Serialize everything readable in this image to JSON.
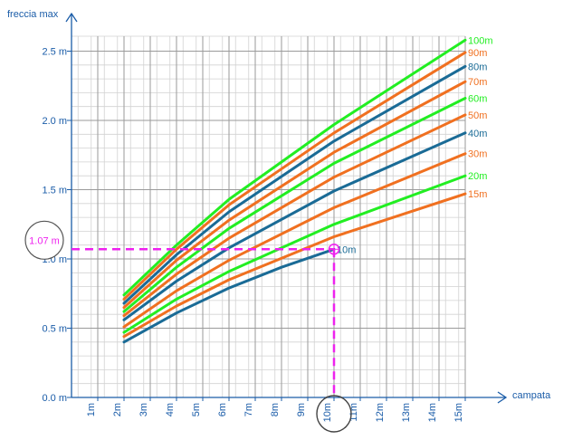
{
  "chart_data": {
    "type": "line",
    "ylabel": "freccia max",
    "xlabel": "campata",
    "xlim": [
      0,
      15
    ],
    "ylim": [
      0,
      2.5
    ],
    "x_ticks": [
      "1m",
      "2m",
      "3m",
      "4m",
      "5m",
      "6m",
      "7m",
      "8m",
      "9m",
      "10m",
      "11m",
      "12m",
      "13m",
      "14m",
      "15m"
    ],
    "y_ticks": [
      "0.0 m",
      "0.5 m",
      "1.0 m",
      "1.5 m",
      "2.0 m",
      "2.5 m"
    ],
    "grid": true,
    "colors": {
      "green": "#22ee22",
      "orange": "#f07020",
      "blue": "#1a6b96",
      "magenta": "#ee22ee",
      "grid": "#9a9a9a"
    },
    "series": [
      {
        "name": "100m",
        "color": "#22ee22",
        "x": [
          2,
          4,
          6,
          10,
          15
        ],
        "y": [
          0.74,
          1.1,
          1.43,
          1.97,
          2.58
        ]
      },
      {
        "name": "90m",
        "color": "#f07020",
        "x": [
          2,
          4,
          6,
          10,
          15
        ],
        "y": [
          0.71,
          1.07,
          1.39,
          1.91,
          2.49
        ]
      },
      {
        "name": "80m",
        "color": "#1a6b96",
        "x": [
          2,
          4,
          6,
          10,
          15
        ],
        "y": [
          0.68,
          1.03,
          1.34,
          1.85,
          2.39
        ]
      },
      {
        "name": "70m",
        "color": "#f07020",
        "x": [
          2,
          4,
          6,
          10,
          15
        ],
        "y": [
          0.65,
          0.99,
          1.28,
          1.77,
          2.28
        ]
      },
      {
        "name": "60m",
        "color": "#22ee22",
        "x": [
          2,
          4,
          6,
          10,
          15
        ],
        "y": [
          0.62,
          0.94,
          1.22,
          1.69,
          2.16
        ]
      },
      {
        "name": "50m",
        "color": "#f07020",
        "x": [
          2,
          4,
          6,
          10,
          15
        ],
        "y": [
          0.59,
          0.89,
          1.15,
          1.59,
          2.04
        ]
      },
      {
        "name": "40m",
        "color": "#1a6b96",
        "x": [
          2,
          4,
          6,
          10,
          15
        ],
        "y": [
          0.56,
          0.84,
          1.08,
          1.49,
          1.91
        ]
      },
      {
        "name": "30m",
        "color": "#f07020",
        "x": [
          2,
          4,
          6,
          10,
          15
        ],
        "y": [
          0.51,
          0.77,
          0.99,
          1.37,
          1.76
        ]
      },
      {
        "name": "20m",
        "color": "#22ee22",
        "x": [
          2,
          4,
          6,
          10,
          15
        ],
        "y": [
          0.47,
          0.71,
          0.91,
          1.25,
          1.6
        ]
      },
      {
        "name": "15m",
        "color": "#f07020",
        "x": [
          2,
          4,
          6,
          10,
          15
        ],
        "y": [
          0.44,
          0.66,
          0.85,
          1.16,
          1.47
        ]
      },
      {
        "name": "10m",
        "color": "#1a6b96",
        "x": [
          2,
          4,
          6,
          8,
          10
        ],
        "y": [
          0.4,
          0.61,
          0.79,
          0.94,
          1.07
        ]
      }
    ],
    "annotations": [
      {
        "label": "1.07 m",
        "x": 0,
        "y": 1.07,
        "style": "circled y-value"
      },
      {
        "label": "10m",
        "x": 10,
        "y": 0,
        "style": "circled x-value"
      }
    ],
    "reference_point": {
      "x": 10,
      "y": 1.07
    }
  }
}
